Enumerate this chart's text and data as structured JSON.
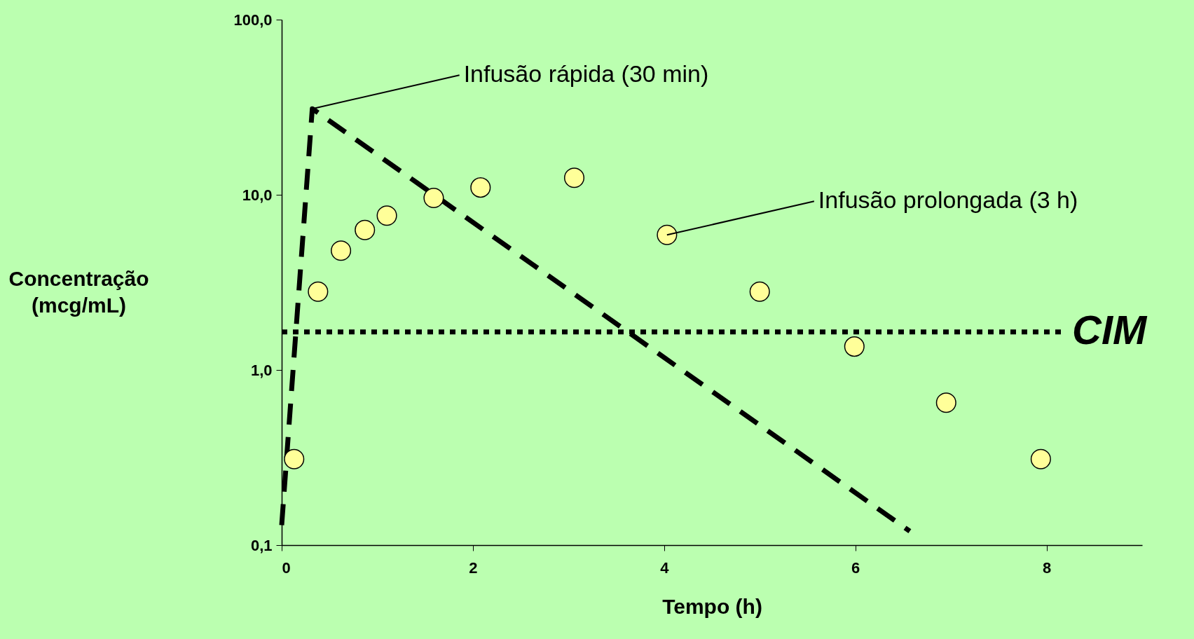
{
  "chart_data": {
    "type": "scatter",
    "xlabel": "Tempo (h)",
    "ylabel": "Concentração (mcg/mL)",
    "xlim": [
      0,
      9
    ],
    "xticks": [
      0,
      2,
      4,
      6,
      8
    ],
    "ylim": [
      0.1,
      100
    ],
    "yticks": [
      {
        "value": 0.1,
        "label": "0,1"
      },
      {
        "value": 1,
        "label": "1,0"
      },
      {
        "value": 10,
        "label": "10,0"
      },
      {
        "value": 100,
        "label": "100,0"
      }
    ],
    "log": "y",
    "series": [
      {
        "type": "line",
        "color": "#000000",
        "line_style": "dashed",
        "marker": "none",
        "x": [
          0,
          0.32,
          6.57
        ],
        "values": [
          0.13,
          31,
          0.12
        ]
      },
      {
        "type": "scatter",
        "color": "#ffff99",
        "marker": "circle",
        "x": [
          0.13,
          0.38,
          0.62,
          0.87,
          1.1,
          1.59,
          2.08,
          3.06,
          4.03,
          5.0,
          5.99,
          6.95,
          7.94
        ],
        "values": [
          0.31,
          2.8,
          4.8,
          6.3,
          7.6,
          9.6,
          11.0,
          12.5,
          5.9,
          2.8,
          1.36,
          0.65,
          0.31
        ]
      }
    ],
    "ref_lines": [
      {
        "axis": "y",
        "value": 1.65,
        "label": "CIM",
        "color": "#000000",
        "line_style": "dotted"
      }
    ],
    "annotations": [
      {
        "text": "Infusão rápida (30 min)",
        "x": 0.32,
        "y": 31
      },
      {
        "text": "Infusão prolongada (3 h)",
        "x": 4.03,
        "y": 5.9
      }
    ]
  }
}
